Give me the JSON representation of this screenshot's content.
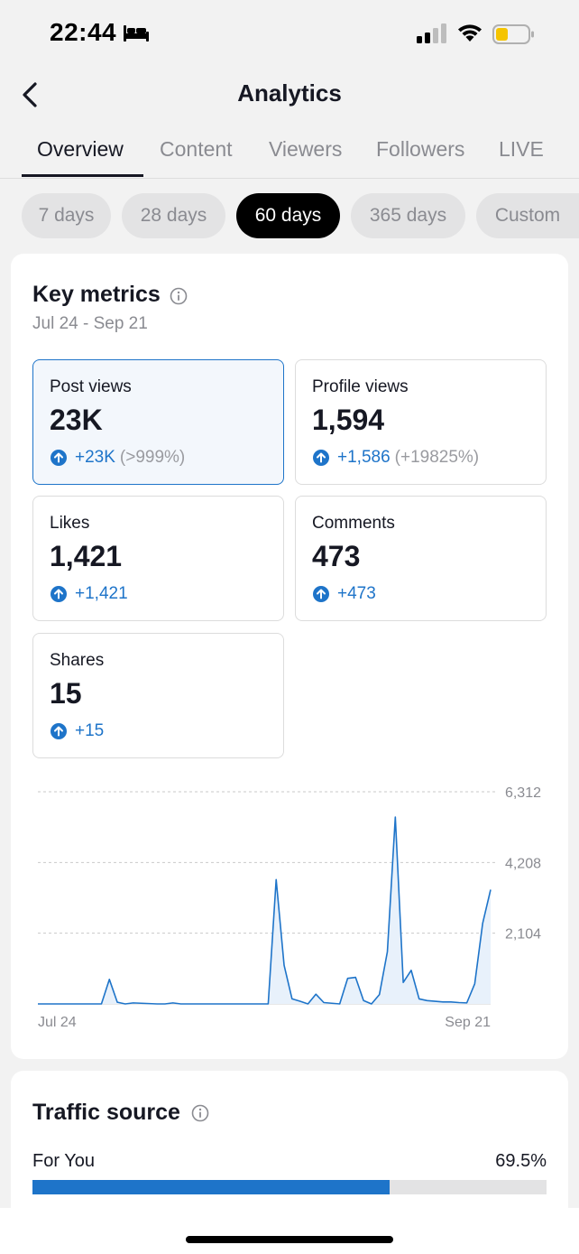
{
  "status_bar": {
    "time": "22:44"
  },
  "header": {
    "title": "Analytics"
  },
  "tabs": [
    {
      "label": "Overview",
      "active": true
    },
    {
      "label": "Content",
      "active": false
    },
    {
      "label": "Viewers",
      "active": false
    },
    {
      "label": "Followers",
      "active": false
    },
    {
      "label": "LIVE",
      "active": false
    }
  ],
  "ranges": [
    {
      "label": "7 days",
      "active": false
    },
    {
      "label": "28 days",
      "active": false
    },
    {
      "label": "60 days",
      "active": true
    },
    {
      "label": "365 days",
      "active": false
    },
    {
      "label": "Custom",
      "active": false
    }
  ],
  "key_metrics": {
    "title": "Key metrics",
    "date_range": "Jul 24 - Sep 21",
    "metrics": [
      {
        "label": "Post views",
        "value": "23K",
        "change": "+23K",
        "pct": "(>999%)",
        "selected": true
      },
      {
        "label": "Profile views",
        "value": "1,594",
        "change": "+1,586",
        "pct": "(+19825%)",
        "selected": false
      },
      {
        "label": "Likes",
        "value": "1,421",
        "change": "+1,421",
        "pct": "",
        "selected": false
      },
      {
        "label": "Comments",
        "value": "473",
        "change": "+473",
        "pct": "",
        "selected": false
      },
      {
        "label": "Shares",
        "value": "15",
        "change": "+15",
        "pct": "",
        "selected": false
      }
    ]
  },
  "chart_data": {
    "type": "area",
    "series": [
      {
        "values": [
          0,
          0,
          0,
          0,
          0,
          0,
          0,
          0,
          0,
          730,
          50,
          0,
          30,
          20,
          10,
          0,
          0,
          30,
          0,
          0,
          0,
          0,
          0,
          0,
          0,
          0,
          0,
          0,
          0,
          0,
          3700,
          1150,
          150,
          80,
          0,
          290,
          40,
          20,
          0,
          760,
          790,
          100,
          0,
          280,
          1550,
          5560,
          640,
          1000,
          150,
          100,
          80,
          60,
          60,
          40,
          30,
          600,
          2400,
          3400
        ]
      }
    ],
    "x_labels": [
      "Jul 24",
      "Sep 21"
    ],
    "y_ticks": [
      {
        "value": 2104,
        "label": "2,104"
      },
      {
        "value": 4208,
        "label": "4,208"
      },
      {
        "value": 6312,
        "label": "6,312"
      }
    ],
    "ylim": [
      0,
      6312
    ],
    "grid": true,
    "colors": {
      "line": "#1e74c9",
      "fill": "#e8f1fb",
      "grid": "#c9c9c9"
    }
  },
  "traffic_source": {
    "title": "Traffic source",
    "items": [
      {
        "label": "For You",
        "value": "69.5%",
        "fraction": 0.695
      }
    ]
  },
  "colors": {
    "accent": "#1e74c9",
    "text": "#161823",
    "muted": "#8a8b91"
  }
}
